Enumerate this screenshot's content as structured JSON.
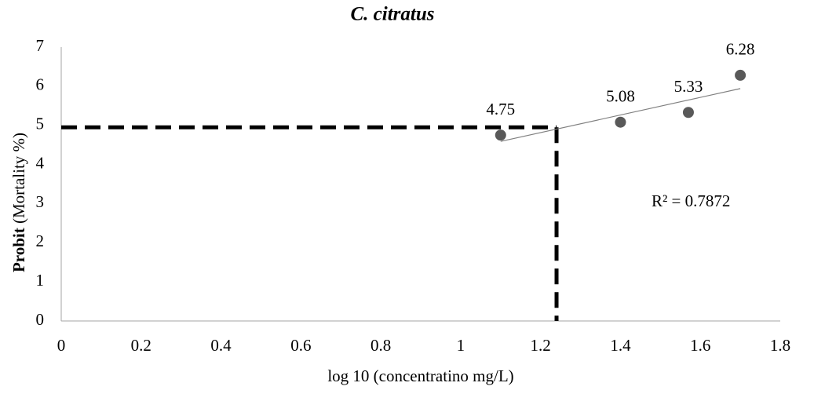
{
  "chart_data": {
    "type": "scatter",
    "title": "C. citratus",
    "xlabel": "log 10 (concentratino mg/L)",
    "ylabel_bold": "Probit",
    "ylabel": "(Mortality %)",
    "x": [
      1.1,
      1.4,
      1.57,
      1.7
    ],
    "series": [
      {
        "name": "Probit",
        "color": "#595959",
        "values": [
          4.75,
          5.08,
          5.33,
          6.28
        ]
      }
    ],
    "xlim": [
      0,
      1.8
    ],
    "xticks": [
      0,
      0.2,
      0.4,
      0.6,
      0.8,
      1,
      1.2,
      1.4,
      1.6,
      1.8
    ],
    "ylim": [
      0,
      7
    ],
    "yticks": [
      0,
      1,
      2,
      3,
      4,
      5,
      6,
      7
    ],
    "trendline": true,
    "trendline_color": "#808080",
    "annotation": "R² = 0.7872",
    "reference_lines": {
      "x": 1.24,
      "y": 4.95
    },
    "grid": false
  }
}
